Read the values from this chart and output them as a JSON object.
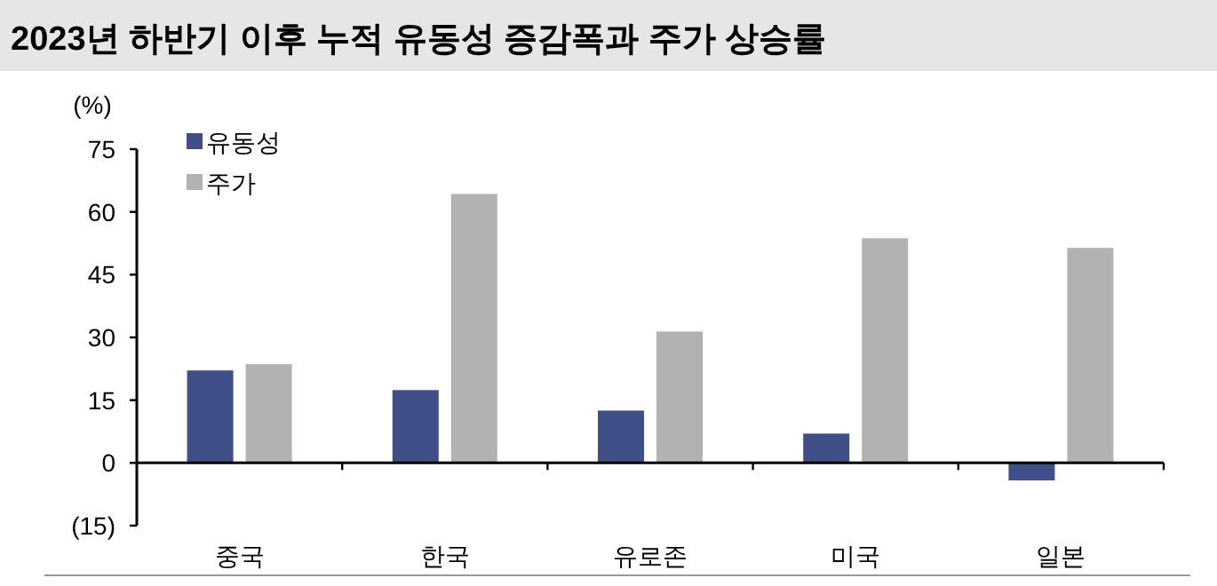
{
  "chart_data": {
    "type": "bar",
    "title": "2023년 하반기 이후 누적 유동성 증감폭과 주가 상승률",
    "ylabel": "(%)",
    "categories": [
      "중국",
      "한국",
      "유로존",
      "미국",
      "일본"
    ],
    "series": [
      {
        "name": "유동성",
        "color": "#414f88",
        "values": [
          22.1,
          17.4,
          12.5,
          7.0,
          -4.2
        ]
      },
      {
        "name": "주가",
        "color": "#b2b2b2",
        "values": [
          23.6,
          64.3,
          31.4,
          53.7,
          51.4
        ]
      }
    ],
    "ylim": [
      -15,
      75
    ],
    "yticks": [
      {
        "value": -15,
        "label": "(15)"
      },
      0,
      15,
      30,
      45,
      60,
      75
    ],
    "legend": "top left"
  }
}
